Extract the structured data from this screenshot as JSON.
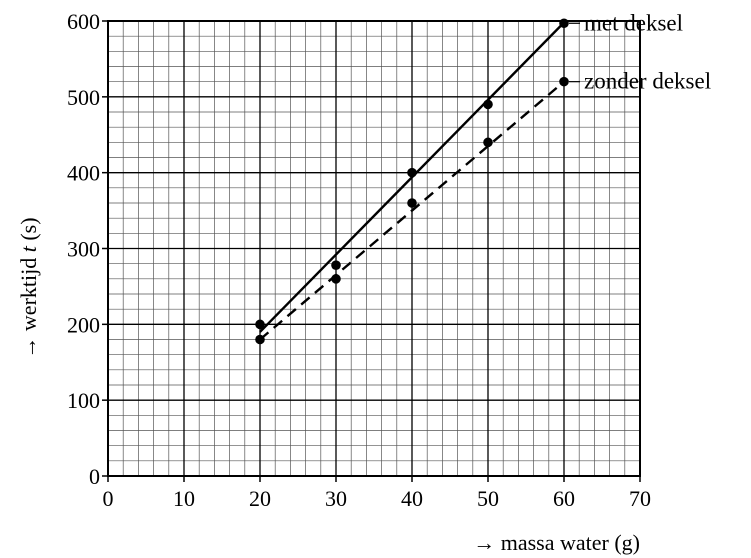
{
  "chart_data": {
    "type": "line",
    "xlabel": "→ massa water (g)",
    "ylabel_prefix": "→ werktijd ",
    "ylabel_var": "t",
    "ylabel_suffix": " (s)",
    "xlim": [
      0,
      70
    ],
    "ylim": [
      0,
      600
    ],
    "x_major_step": 10,
    "x_minor_step": 2,
    "y_major_step": 100,
    "y_minor_step": 20,
    "grid": true,
    "xticks": [
      "0",
      "10",
      "20",
      "30",
      "40",
      "50",
      "60",
      "70"
    ],
    "yticks": [
      "0",
      "100",
      "200",
      "300",
      "400",
      "500",
      "600"
    ],
    "series": [
      {
        "name": "met deksel",
        "line_style": "solid",
        "fit": [
          [
            20,
            190
          ],
          [
            60,
            598
          ]
        ],
        "points": [
          [
            20,
            200
          ],
          [
            30,
            278
          ],
          [
            40,
            400
          ],
          [
            50,
            490
          ],
          [
            60,
            597
          ]
        ]
      },
      {
        "name": "zonder deksel",
        "line_style": "dashed",
        "fit": [
          [
            20,
            180
          ],
          [
            60,
            520
          ]
        ],
        "points": [
          [
            20,
            180
          ],
          [
            30,
            260
          ],
          [
            40,
            360
          ],
          [
            50,
            440
          ],
          [
            60,
            520
          ]
        ]
      }
    ]
  }
}
